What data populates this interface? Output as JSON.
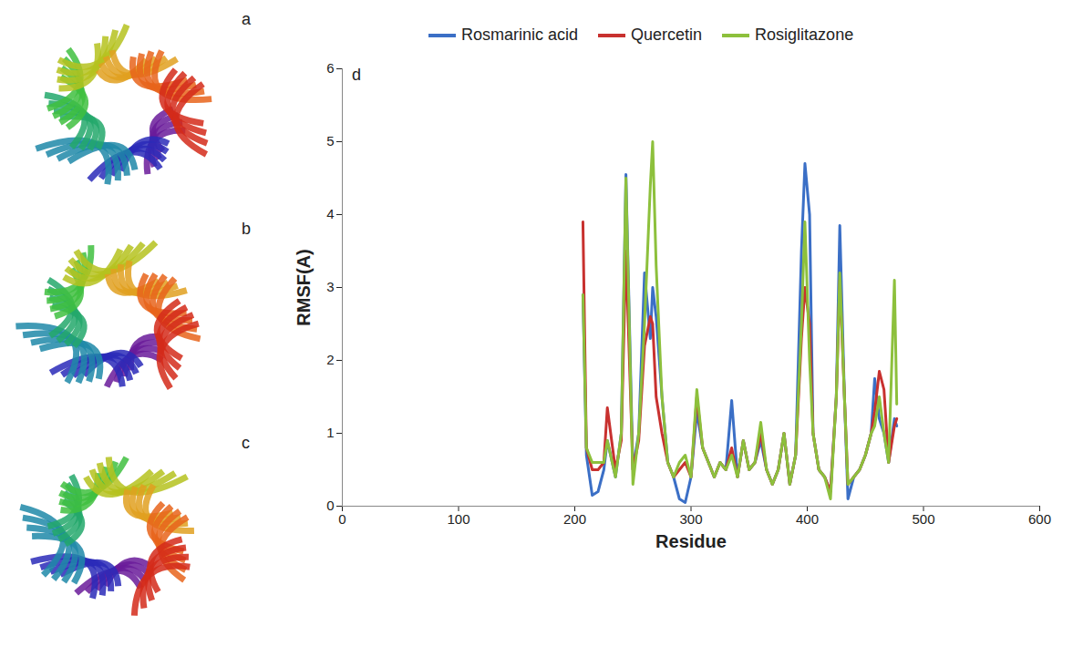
{
  "images": [
    {
      "label": "a"
    },
    {
      "label": "b"
    },
    {
      "label": "c"
    }
  ],
  "chart_data": {
    "type": "line",
    "panel": "d",
    "x_label": "Residue",
    "y_label": "RMSF(A)",
    "x": [
      207,
      210,
      215,
      220,
      225,
      228,
      235,
      240,
      244,
      250,
      255,
      260,
      265,
      267,
      270,
      275,
      280,
      285,
      290,
      295,
      300,
      305,
      310,
      315,
      320,
      325,
      330,
      335,
      340,
      345,
      350,
      355,
      360,
      365,
      370,
      375,
      380,
      385,
      390,
      395,
      398,
      402,
      405,
      410,
      415,
      420,
      425,
      428,
      432,
      435,
      440,
      445,
      450,
      455,
      458,
      462,
      466,
      470,
      475,
      477
    ],
    "series": [
      {
        "name": "Rosmarinic acid",
        "color": "#3b6fc6",
        "values": [
          2.9,
          0.7,
          0.15,
          0.2,
          0.5,
          0.9,
          0.4,
          1.0,
          4.55,
          0.5,
          1.0,
          3.2,
          2.3,
          3.0,
          2.6,
          1.5,
          0.6,
          0.4,
          0.1,
          0.05,
          0.4,
          1.3,
          0.8,
          0.6,
          0.4,
          0.6,
          0.5,
          1.45,
          0.4,
          0.9,
          0.5,
          0.6,
          0.9,
          0.5,
          0.3,
          0.5,
          1.0,
          0.3,
          0.7,
          3.5,
          4.7,
          4.0,
          1.0,
          0.5,
          0.4,
          0.2,
          1.5,
          3.85,
          1.5,
          0.1,
          0.4,
          0.5,
          0.7,
          1.0,
          1.75,
          1.2,
          1.0,
          0.6,
          1.2,
          1.1
        ]
      },
      {
        "name": "Quercetin",
        "color": "#c8312f",
        "values": [
          3.9,
          0.8,
          0.5,
          0.5,
          0.6,
          1.35,
          0.5,
          0.9,
          3.5,
          0.5,
          0.9,
          2.2,
          2.6,
          2.5,
          1.5,
          1.0,
          0.6,
          0.4,
          0.5,
          0.6,
          0.4,
          1.5,
          0.8,
          0.6,
          0.4,
          0.6,
          0.5,
          0.8,
          0.4,
          0.9,
          0.5,
          0.6,
          1.0,
          0.5,
          0.3,
          0.5,
          1.0,
          0.3,
          0.7,
          2.3,
          3.0,
          2.5,
          1.0,
          0.5,
          0.4,
          0.2,
          1.5,
          3.1,
          1.5,
          0.3,
          0.4,
          0.5,
          0.7,
          1.0,
          1.3,
          1.85,
          1.6,
          0.6,
          1.1,
          1.2
        ]
      },
      {
        "name": "Rosiglitazone",
        "color": "#8dc03c",
        "values": [
          2.9,
          0.8,
          0.6,
          0.6,
          0.6,
          0.9,
          0.4,
          1.0,
          4.5,
          0.3,
          1.0,
          2.5,
          4.4,
          5.0,
          3.3,
          1.5,
          0.6,
          0.4,
          0.6,
          0.7,
          0.4,
          1.6,
          0.8,
          0.6,
          0.4,
          0.6,
          0.5,
          0.7,
          0.4,
          0.9,
          0.5,
          0.6,
          1.15,
          0.5,
          0.3,
          0.5,
          1.0,
          0.3,
          0.7,
          2.5,
          3.9,
          2.0,
          1.0,
          0.5,
          0.4,
          0.1,
          1.5,
          3.2,
          1.5,
          0.3,
          0.4,
          0.5,
          0.7,
          1.0,
          1.1,
          1.5,
          1.0,
          0.6,
          3.1,
          1.4
        ]
      }
    ],
    "xlim": [
      0,
      600
    ],
    "xticks": [
      0,
      100,
      200,
      300,
      400,
      500,
      600
    ],
    "ylim": [
      0,
      6
    ],
    "yticks": [
      0,
      1,
      2,
      3,
      4,
      5,
      6
    ],
    "legend": "top"
  }
}
